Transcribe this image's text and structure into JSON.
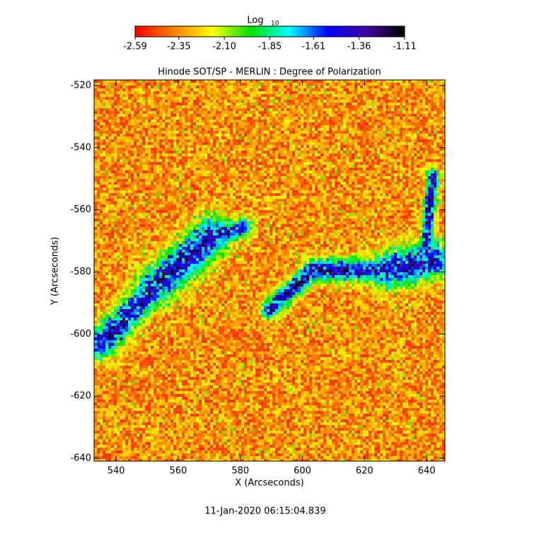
{
  "chart_data": {
    "type": "image",
    "title": "Hinode SOT/SP - MERLIN : Degree of Polarization",
    "x_label": "X (Arcseconds)",
    "y_label": "Y (Arcseconds)",
    "xlim": [
      532.9,
      645.9
    ],
    "ylim": [
      -640.9,
      -518.2
    ],
    "xticks": [
      540,
      560,
      580,
      600,
      620,
      640
    ],
    "yticks": [
      -520,
      -540,
      -560,
      -580,
      -600,
      -620,
      -640
    ],
    "colorbar": {
      "label": "Log",
      "label_sub": "10",
      "lim": [
        -2.59,
        -1.11
      ],
      "ticks": [
        -2.59,
        -2.35,
        {
          "value": -2.1,
          "label": "-2.10"
        },
        -1.85,
        -1.61,
        -1.36,
        -1.11
      ],
      "colormap": [
        "#ff0000",
        "#ff8000",
        "#ffff00",
        "#00e000",
        "#00ffff",
        "#0000ff",
        "#4000a0",
        "#000000"
      ]
    },
    "footer": "11-Jan-2020 06:15:04.839"
  }
}
